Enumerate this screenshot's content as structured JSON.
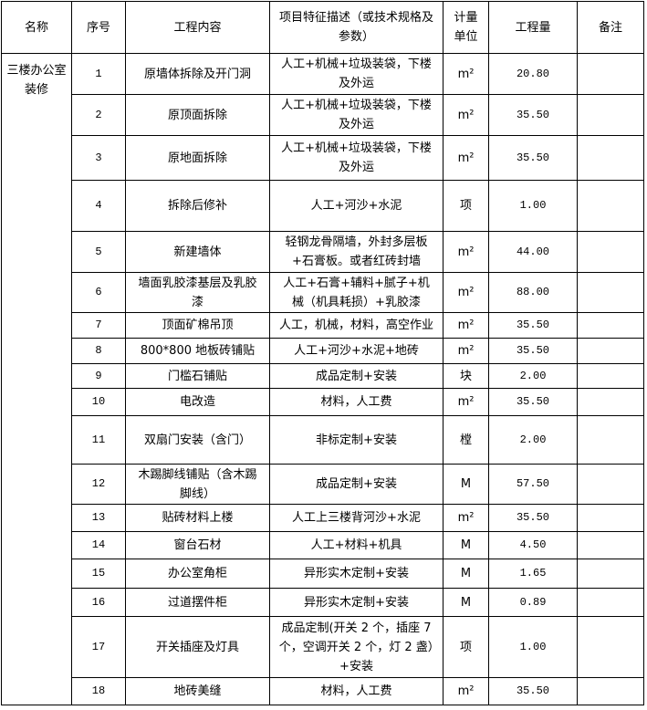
{
  "headers": {
    "name": "名称",
    "seq": "序号",
    "content": "工程内容",
    "desc": "项目特征描述（或技术规格及参数）",
    "unit": "计量单位",
    "qty": "工程量",
    "note": "备注"
  },
  "group_name": "三楼办公室装修",
  "rows": [
    {
      "seq": "1",
      "content": "原墙体拆除及开门洞",
      "desc": "人工+机械+垃圾装袋，下楼及外运",
      "unit": "m²",
      "qty": "20.80",
      "note": ""
    },
    {
      "seq": "2",
      "content": "原顶面拆除",
      "desc": "人工+机械+垃圾装袋，下楼及外运",
      "unit": "m²",
      "qty": "35.50",
      "note": ""
    },
    {
      "seq": "3",
      "content": "原地面拆除",
      "desc": "人工+机械+垃圾装袋，下楼及外运",
      "unit": "m²",
      "qty": "35.50",
      "note": ""
    },
    {
      "seq": "4",
      "content": "拆除后修补",
      "desc": "人工+河沙+水泥",
      "unit": "项",
      "qty": "1.00",
      "note": ""
    },
    {
      "seq": "5",
      "content": "新建墙体",
      "desc": "轻钢龙骨隔墙，外封多层板+石膏板。或者红砖封墙",
      "unit": "m²",
      "qty": "44.00",
      "note": ""
    },
    {
      "seq": "6",
      "content": "墙面乳胶漆基层及乳胶漆",
      "desc": "人工+石膏+辅料+腻子+机械（机具耗损）+乳胶漆",
      "unit": "m²",
      "qty": "88.00",
      "note": ""
    },
    {
      "seq": "7",
      "content": "顶面矿棉吊顶",
      "desc": "人工，机械，材料，高空作业",
      "unit": "m²",
      "qty": "35.50",
      "note": ""
    },
    {
      "seq": "8",
      "content": "800*800 地板砖铺贴",
      "desc": "人工+河沙+水泥+地砖",
      "unit": "m²",
      "qty": "35.50",
      "note": ""
    },
    {
      "seq": "9",
      "content": "门槛石铺贴",
      "desc": "成品定制+安装",
      "unit": "块",
      "qty": "2.00",
      "note": ""
    },
    {
      "seq": "10",
      "content": "电改造",
      "desc": "材料，人工费",
      "unit": "m²",
      "qty": "35.50",
      "note": ""
    },
    {
      "seq": "11",
      "content": "双扇门安装（含门）",
      "desc": "非标定制+安装",
      "unit": "樘",
      "qty": "2.00",
      "note": ""
    },
    {
      "seq": "12",
      "content": "木踢脚线铺贴（含木踢脚线）",
      "desc": "成品定制+安装",
      "unit": "M",
      "qty": "57.50",
      "note": ""
    },
    {
      "seq": "13",
      "content": "贴砖材料上楼",
      "desc": "人工上三楼背河沙+水泥",
      "unit": "m²",
      "qty": "35.50",
      "note": ""
    },
    {
      "seq": "14",
      "content": "窗台石材",
      "desc": "人工+材料+机具",
      "unit": "M",
      "qty": "4.50",
      "note": ""
    },
    {
      "seq": "15",
      "content": "办公室角柜",
      "desc": "异形实木定制+安装",
      "unit": "M",
      "qty": "1.65",
      "note": ""
    },
    {
      "seq": "16",
      "content": "过道摆件柜",
      "desc": "异形实木定制+安装",
      "unit": "M",
      "qty": "0.89",
      "note": ""
    },
    {
      "seq": "17",
      "content": "开关插座及灯具",
      "desc": "成品定制(开关 2 个，插座 7 个，空调开关 2 个，灯 2 盏）+安装",
      "unit": "项",
      "qty": "1.00",
      "note": ""
    },
    {
      "seq": "18",
      "content": "地砖美缝",
      "desc": "材料，人工费",
      "unit": "m²",
      "qty": "35.50",
      "note": ""
    }
  ]
}
